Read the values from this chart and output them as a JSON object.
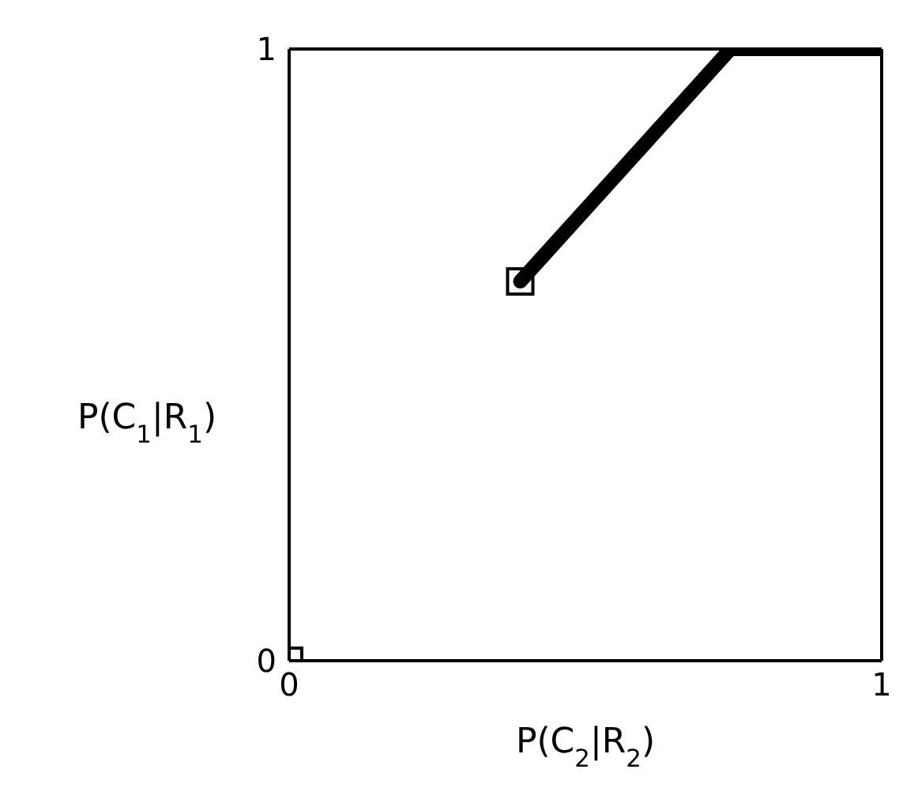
{
  "chart_data": {
    "type": "line",
    "xlabel": "P(C$_{2}$|R$_{2}$)",
    "ylabel": "P(C$_{1}$|R$_{1}$)",
    "xlim": [
      0,
      1
    ],
    "ylim": [
      0,
      1
    ],
    "xticks": [
      0,
      1
    ],
    "yticks": [
      0,
      1
    ],
    "series": [
      {
        "color": "#000000",
        "x": [
          0.39,
          0.745,
          1
        ],
        "values": [
          0.62,
          1,
          1
        ],
        "marker": "none",
        "line_style": "solid"
      },
      {
        "type": "scatter",
        "color": "#000000",
        "x": [
          0,
          0.39
        ],
        "values": [
          0,
          0.62
        ],
        "marker": "square"
      }
    ]
  }
}
